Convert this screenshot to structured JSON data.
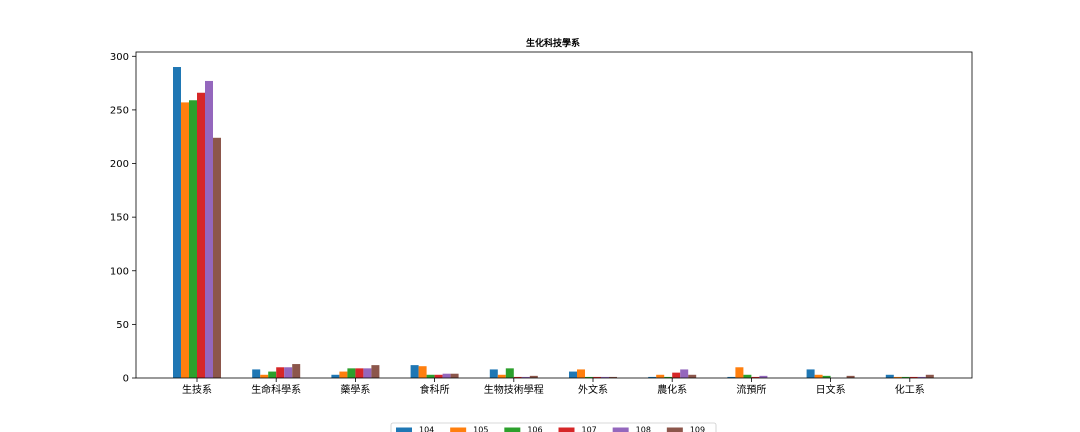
{
  "chart_data": {
    "type": "bar",
    "title": "生化科技學系",
    "xlabel": "",
    "ylabel": "",
    "ylim": [
      0,
      300
    ],
    "yticks": [
      0,
      50,
      100,
      150,
      200,
      250,
      300
    ],
    "grid": false,
    "legend_position": "bottom-center",
    "categories": [
      "生技系",
      "生命科學系",
      "藥學系",
      "食科所",
      "生物技術學程",
      "外文系",
      "農化系",
      "流預所",
      "日文系",
      "化工系"
    ],
    "series": [
      {
        "name": "104",
        "color": "#1f77b4",
        "values": [
          290,
          8,
          3,
          12,
          8,
          6,
          1,
          1,
          8,
          3
        ]
      },
      {
        "name": "105",
        "color": "#ff7f0e",
        "values": [
          257,
          3,
          6,
          11,
          3,
          8,
          3,
          10,
          3,
          1
        ]
      },
      {
        "name": "106",
        "color": "#2ca02c",
        "values": [
          259,
          6,
          9,
          3,
          9,
          1,
          1,
          3,
          2,
          1
        ]
      },
      {
        "name": "107",
        "color": "#d62728",
        "values": [
          266,
          10,
          9,
          3,
          1,
          1,
          5,
          1,
          0,
          1
        ]
      },
      {
        "name": "108",
        "color": "#9467bd",
        "values": [
          277,
          10,
          9,
          4,
          1,
          1,
          8,
          2,
          0,
          1
        ]
      },
      {
        "name": "109",
        "color": "#8c564b",
        "values": [
          224,
          13,
          12,
          4,
          2,
          1,
          3,
          0,
          2,
          3
        ]
      }
    ]
  }
}
